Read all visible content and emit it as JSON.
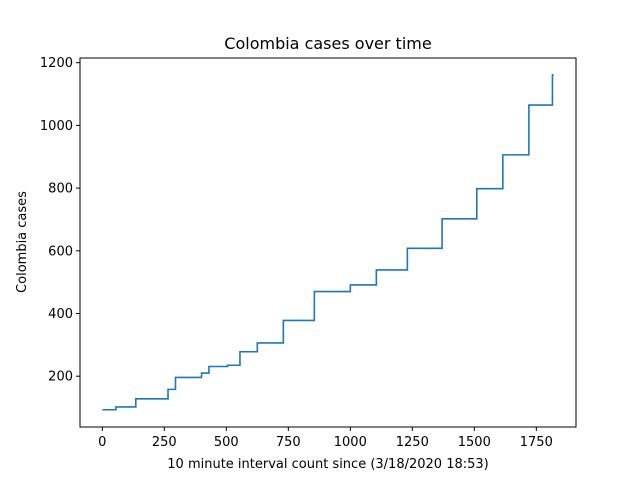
{
  "chart_data": {
    "type": "line",
    "title": "Colombia cases over time",
    "xlabel": "10 minute interval count since (3/18/2020 18:53)",
    "ylabel": "Colombia cases",
    "xlim": [
      -90,
      1910
    ],
    "ylim": [
      38,
      1215
    ],
    "x_ticks": [
      0,
      250,
      500,
      750,
      1000,
      1250,
      1500,
      1750
    ],
    "y_ticks": [
      200,
      400,
      600,
      800,
      1000,
      1200
    ],
    "grid": false,
    "line_color": "#1f77b4",
    "step": true,
    "series": [
      {
        "x": [
          0,
          55,
          135,
          265,
          295,
          400,
          430,
          505,
          555,
          625,
          730,
          855,
          1000,
          1105,
          1230,
          1370,
          1510,
          1615,
          1720,
          1815,
          1820
        ],
        "y": [
          93,
          102,
          128,
          158,
          196,
          210,
          231,
          235,
          278,
          306,
          378,
          470,
          491,
          539,
          608,
          702,
          798,
          906,
          1065,
          1161,
          1161
        ]
      }
    ]
  }
}
